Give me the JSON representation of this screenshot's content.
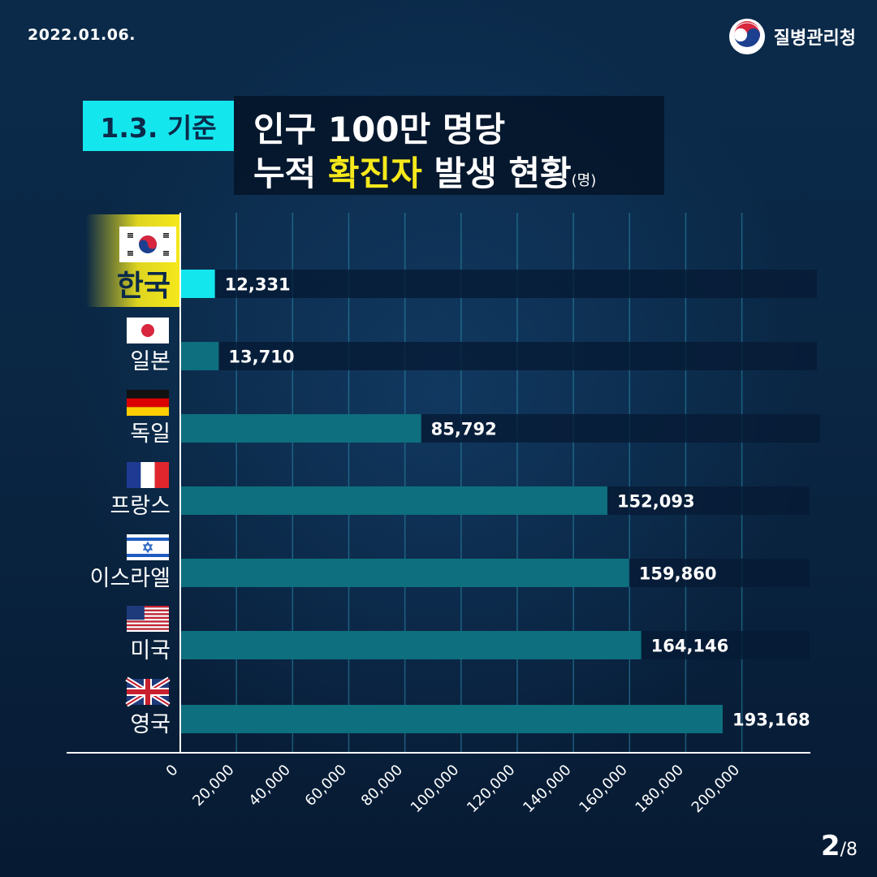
{
  "header": {
    "date": "2022.01.06.",
    "agency": "질병관리청"
  },
  "title": {
    "tag": "1.3. 기준",
    "line1": "인구 100만 명당",
    "line2_pre": "누적 ",
    "line2_highlight": "확진자",
    "line2_post": " 발생 현황",
    "unit": "(명)"
  },
  "colors": {
    "accent": "#14e6ee",
    "highlight": "#f6e81b",
    "bar": "#0e6f7e",
    "track": "#061a34"
  },
  "chart_data": {
    "type": "bar",
    "orientation": "horizontal",
    "categories": [
      "한국",
      "일본",
      "독일",
      "프랑스",
      "이스라엘",
      "미국",
      "영국"
    ],
    "values": [
      12331,
      13710,
      85792,
      152093,
      159860,
      164146,
      193168
    ],
    "value_labels": [
      "12,331",
      "13,710",
      "85,792",
      "152,093",
      "159,860",
      "164,146",
      "193,168"
    ],
    "flags": [
      "korea-flag-icon",
      "japan-flag-icon",
      "germany-flag-icon",
      "france-flag-icon",
      "israel-flag-icon",
      "usa-flag-icon",
      "uk-flag-icon"
    ],
    "highlight_index": 0,
    "xlim": [
      0,
      200000
    ],
    "xticks": [
      0,
      20000,
      40000,
      60000,
      80000,
      100000,
      120000,
      140000,
      160000,
      180000,
      200000
    ],
    "xtick_labels": [
      "0",
      "20,000",
      "40,000",
      "60,000",
      "80,000",
      "100,000",
      "120,000",
      "140,000",
      "160,000",
      "180,000",
      "200,000"
    ],
    "grid": true
  },
  "footer": {
    "page_current": "2",
    "page_total": "/8"
  }
}
